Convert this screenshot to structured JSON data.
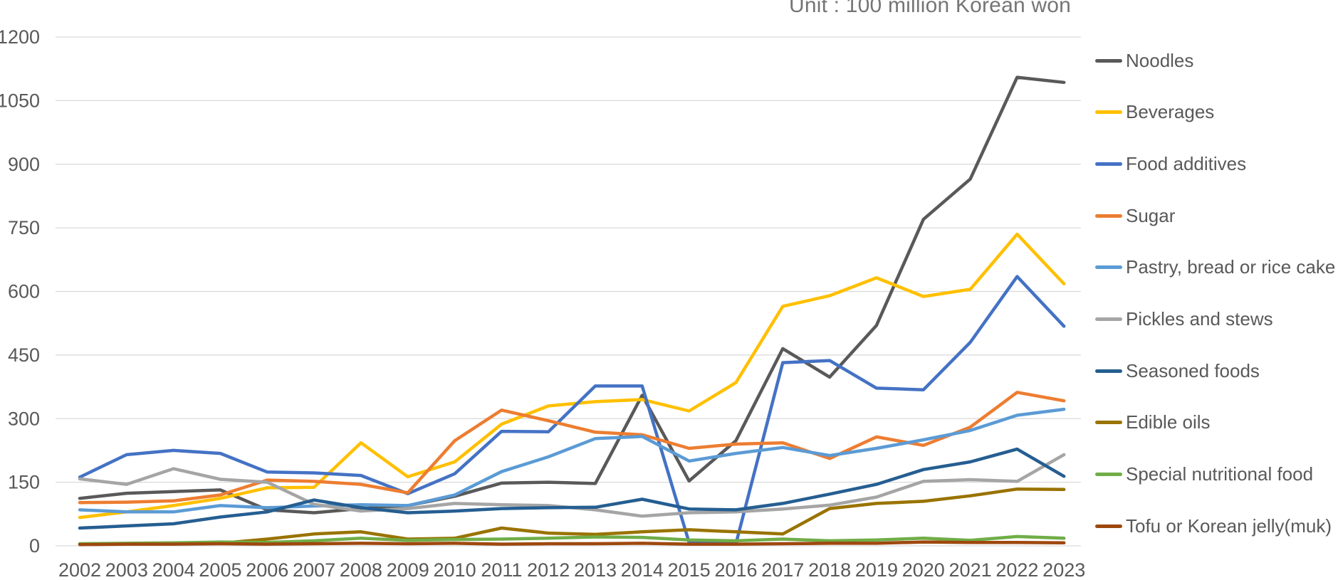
{
  "title": "Unit : 100 million Korean won",
  "chart_data": {
    "type": "line",
    "title": "Unit : 100 million Korean won",
    "xlabel": "",
    "ylabel": "",
    "x": [
      2002,
      2003,
      2004,
      2005,
      2006,
      2007,
      2008,
      2009,
      2010,
      2011,
      2012,
      2013,
      2014,
      2015,
      2016,
      2017,
      2018,
      2019,
      2020,
      2021,
      2022,
      2023
    ],
    "ylim": [
      0,
      1200
    ],
    "y_ticks": [
      0,
      150,
      300,
      450,
      600,
      750,
      900,
      1050,
      1200
    ],
    "grid": "horizontal",
    "legend_position": "right",
    "series": [
      {
        "name": "Noodles",
        "color": "#595959",
        "values": [
          112,
          124,
          128,
          132,
          85,
          78,
          88,
          95,
          117,
          148,
          150,
          147,
          355,
          153,
          248,
          465,
          398,
          520,
          770,
          865,
          1105,
          1093
        ]
      },
      {
        "name": "Beverages",
        "color": "#FFC000",
        "values": [
          67,
          80,
          95,
          112,
          137,
          138,
          243,
          163,
          198,
          287,
          330,
          340,
          345,
          318,
          385,
          565,
          590,
          632,
          588,
          605,
          735,
          618
        ]
      },
      {
        "name": "Food additives",
        "color": "#4472C4",
        "values": [
          162,
          215,
          225,
          218,
          174,
          172,
          166,
          123,
          170,
          270,
          269,
          377,
          377,
          8,
          5,
          432,
          437,
          372,
          368,
          480,
          635,
          518
        ]
      },
      {
        "name": "Sugar",
        "color": "#ED7D31",
        "values": [
          102,
          103,
          106,
          120,
          155,
          152,
          145,
          125,
          248,
          320,
          295,
          268,
          262,
          230,
          240,
          243,
          206,
          257,
          237,
          280,
          362,
          342
        ]
      },
      {
        "name": "Pastry, bread or rice cake",
        "color": "#5B9BD5",
        "values": [
          85,
          80,
          80,
          95,
          90,
          94,
          97,
          95,
          120,
          175,
          210,
          253,
          258,
          200,
          218,
          232,
          213,
          230,
          250,
          272,
          308,
          322
        ]
      },
      {
        "name": "Pickles and stews",
        "color": "#A5A5A5",
        "values": [
          158,
          145,
          182,
          157,
          150,
          98,
          82,
          88,
          100,
          97,
          95,
          85,
          70,
          78,
          80,
          87,
          96,
          115,
          152,
          156,
          152,
          215
        ]
      },
      {
        "name": "Seasoned foods",
        "color": "#255E91",
        "values": [
          42,
          47,
          52,
          68,
          80,
          108,
          90,
          78,
          82,
          88,
          90,
          91,
          110,
          87,
          85,
          100,
          122,
          145,
          180,
          198,
          228,
          164
        ]
      },
      {
        "name": "Edible oils",
        "color": "#997300",
        "values": [
          4,
          5,
          6,
          6,
          16,
          28,
          33,
          16,
          18,
          42,
          30,
          27,
          33,
          38,
          33,
          28,
          88,
          100,
          105,
          118,
          134,
          133
        ]
      },
      {
        "name": "Special nutritional food",
        "color": "#70AD47",
        "values": [
          5,
          6,
          7,
          9,
          8,
          12,
          18,
          13,
          15,
          16,
          18,
          21,
          20,
          14,
          12,
          16,
          12,
          14,
          18,
          13,
          22,
          18
        ]
      },
      {
        "name": "Tofu or Korean jelly(muk)",
        "color": "#9E480E",
        "values": [
          3,
          4,
          4,
          5,
          4,
          5,
          6,
          5,
          6,
          4,
          5,
          5,
          6,
          4,
          4,
          5,
          6,
          6,
          9,
          8,
          8,
          7
        ]
      }
    ]
  }
}
